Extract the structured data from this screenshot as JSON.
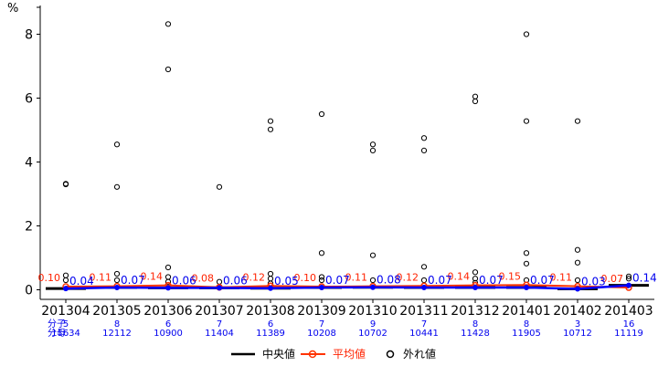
{
  "chart_data": {
    "type": "box",
    "ylabel": "%",
    "ylim": [
      -0.3,
      8.9
    ],
    "yticks": [
      0,
      2,
      4,
      6,
      8
    ],
    "categories": [
      "201304",
      "201305",
      "201306",
      "201307",
      "201308",
      "201309",
      "201310",
      "201311",
      "201312",
      "201401",
      "201402",
      "201403"
    ],
    "median": [
      0.04,
      0.07,
      0.06,
      0.06,
      0.05,
      0.07,
      0.08,
      0.07,
      0.07,
      0.07,
      0.03,
      0.14
    ],
    "median_labels": [
      "0.04",
      "0.07",
      "0.06",
      "0.06",
      "0.05",
      "0.07",
      "0.08",
      "0.07",
      "0.07",
      "0.07",
      "0.03",
      "0.14"
    ],
    "mean": [
      0.1,
      0.11,
      0.14,
      0.08,
      0.12,
      0.1,
      0.11,
      0.12,
      0.14,
      0.15,
      0.11,
      0.07
    ],
    "mean_labels": [
      "0.10",
      "0.11",
      "0.14",
      "0.08",
      "0.12",
      "0.10",
      "0.11",
      "0.12",
      "0.14",
      "0.15",
      "0.11",
      "0.07"
    ],
    "outliers": [
      [
        3.3,
        3.32,
        0.45,
        0.3
      ],
      [
        4.55,
        3.22,
        0.5,
        0.3
      ],
      [
        8.32,
        6.9,
        0.7,
        0.4,
        0.25
      ],
      [
        3.22,
        0.25
      ],
      [
        5.28,
        5.02,
        0.5,
        0.35,
        0.2
      ],
      [
        5.5,
        1.15,
        0.4,
        0.3
      ],
      [
        4.55,
        4.36,
        1.08,
        0.3
      ],
      [
        4.75,
        4.36,
        0.72,
        0.3
      ],
      [
        6.05,
        5.9,
        0.55,
        0.35,
        0.22
      ],
      [
        8.0,
        5.28,
        1.15,
        0.82,
        0.3
      ],
      [
        5.28,
        1.25,
        0.85,
        0.3
      ],
      [
        0.42,
        0.35
      ]
    ],
    "numerator_label": "分子",
    "denominator_label": "分母",
    "numerators": [
      "5",
      "8",
      "6",
      "7",
      "6",
      "7",
      "9",
      "7",
      "8",
      "8",
      "3",
      "16"
    ],
    "denominators": [
      "11634",
      "12112",
      "10900",
      "11404",
      "11389",
      "10208",
      "10702",
      "10441",
      "11428",
      "11905",
      "10712",
      "11119"
    ],
    "legend": {
      "median": "中央値",
      "mean": "平均値",
      "outlier": "外れ値"
    },
    "colors": {
      "median_line": "#000000",
      "mean_line": "#ff3300",
      "median_trend": "#0000ff",
      "mean_label": "#ff2200",
      "count_text": "#0000ee"
    }
  }
}
